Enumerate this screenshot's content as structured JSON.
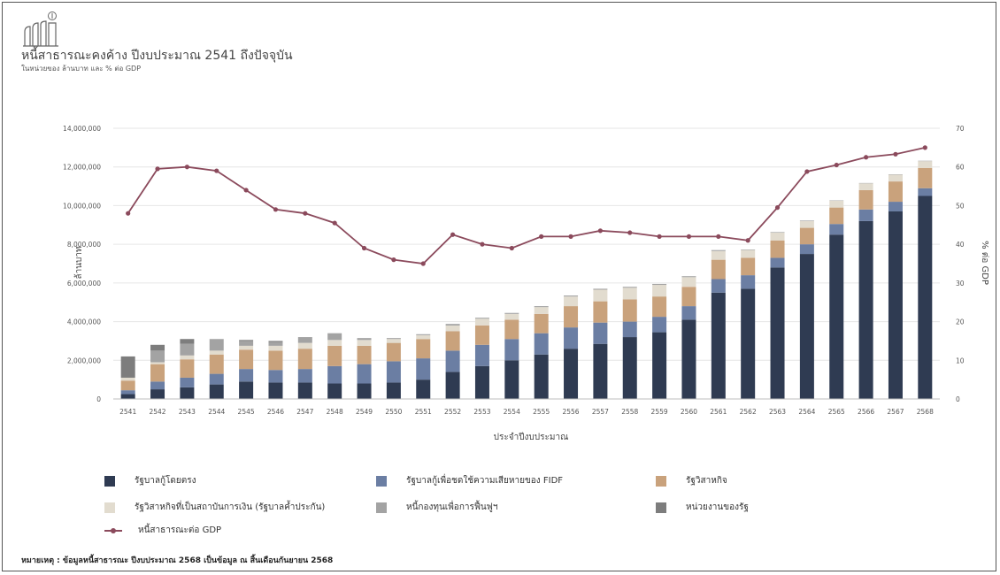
{
  "header": {
    "title": "หนี้สาธารณะคงค้าง ปีงบประมาณ 2541 ถึงปัจจุบัน",
    "subtitle": "ในหน่วยของ ล้านบาท และ % ต่อ GDP"
  },
  "note": "หมายเหตุ : ข้อมูลหนี้สาธารณะ ปีงบประมาณ 2568 เป็นข้อมูล ณ สิ้นเดือนกันยายน 2568",
  "chart_data": {
    "type": "bar",
    "stacked": true,
    "xlabel": "ประจำปีงบประมาณ",
    "ylabel": "ล้านบาท",
    "y2label": "% ต่อ GDP",
    "ylim": [
      0,
      14000000
    ],
    "y2lim": [
      0,
      70
    ],
    "yticks": [
      "0",
      "2,000,000",
      "4,000,000",
      "6,000,000",
      "8,000,000",
      "10,000,000",
      "12,000,000",
      "14,000,000"
    ],
    "y2ticks": [
      "0",
      "10",
      "20",
      "30",
      "40",
      "50",
      "60",
      "70"
    ],
    "grid": true,
    "legend_position": "bottom",
    "categories": [
      "2541",
      "2542",
      "2543",
      "2544",
      "2545",
      "2546",
      "2547",
      "2548",
      "2549",
      "2550",
      "2551",
      "2552",
      "2553",
      "2554",
      "2555",
      "2556",
      "2557",
      "2558",
      "2559",
      "2560",
      "2561",
      "2562",
      "2563",
      "2564",
      "2565",
      "2566",
      "2567",
      "2568"
    ],
    "series": [
      {
        "name": "รัฐบาลกู้โดยตรง",
        "color": "#2f3b52",
        "values": [
          250000,
          500000,
          600000,
          750000,
          900000,
          850000,
          850000,
          800000,
          800000,
          850000,
          1000000,
          1400000,
          1700000,
          2000000,
          2300000,
          2600000,
          2850000,
          3200000,
          3450000,
          4100000,
          5500000,
          5700000,
          6800000,
          7500000,
          8500000,
          9200000,
          9700000,
          10500000
        ]
      },
      {
        "name": "รัฐบาลกู้เพื่อชดใช้ความเสียหายของ FIDF",
        "color": "#6b7ea3",
        "values": [
          200000,
          400000,
          500000,
          550000,
          650000,
          650000,
          700000,
          900000,
          1000000,
          1100000,
          1100000,
          1100000,
          1100000,
          1100000,
          1100000,
          1100000,
          1100000,
          800000,
          800000,
          700000,
          700000,
          700000,
          500000,
          500000,
          550000,
          600000,
          500000,
          400000
        ]
      },
      {
        "name": "รัฐวิสาหกิจ",
        "color": "#c9a27c",
        "values": [
          500000,
          900000,
          950000,
          1000000,
          1000000,
          1000000,
          1050000,
          1050000,
          950000,
          950000,
          1000000,
          1000000,
          1000000,
          1000000,
          1000000,
          1100000,
          1100000,
          1150000,
          1050000,
          1000000,
          1000000,
          900000,
          900000,
          850000,
          850000,
          1000000,
          1050000,
          1050000
        ]
      },
      {
        "name": "รัฐวิสาหกิจที่เป็นสถาบันการเงิน (รัฐบาลค้ำประกัน)",
        "color": "#e2dccf",
        "values": [
          150000,
          100000,
          200000,
          200000,
          200000,
          250000,
          300000,
          300000,
          300000,
          200000,
          200000,
          300000,
          350000,
          300000,
          350000,
          500000,
          600000,
          600000,
          600000,
          500000,
          450000,
          400000,
          400000,
          350000,
          350000,
          350000,
          350000,
          350000
        ]
      },
      {
        "name": "หนี้กองทุนเพื่อการฟื้นฟูฯ",
        "color": "#a3a3a3",
        "values": [
          0,
          600000,
          600000,
          600000,
          250000,
          200000,
          300000,
          350000,
          100000,
          50000,
          50000,
          80000,
          50000,
          50000,
          50000,
          50000,
          50000,
          50000,
          50000,
          50000,
          50000,
          30000,
          30000,
          30000,
          20000,
          20000,
          20000,
          20000
        ]
      },
      {
        "name": "หน่วยงานของรัฐ",
        "color": "#7d7d7d",
        "values": [
          1100000,
          300000,
          250000,
          0,
          50000,
          50000,
          0,
          0,
          0,
          0,
          0,
          0,
          0,
          0,
          0,
          0,
          0,
          0,
          0,
          0,
          0,
          0,
          0,
          0,
          0,
          0,
          0,
          0
        ]
      }
    ],
    "line": {
      "name": "หนี้สาธารณะต่อ GDP",
      "color": "#8b4a5c",
      "axis": "right",
      "values": [
        48,
        59.5,
        60,
        59,
        54,
        49,
        48,
        45.5,
        39,
        36,
        35,
        42.5,
        40,
        39,
        42,
        42,
        43.5,
        43,
        42,
        42,
        42,
        41,
        49.5,
        58.8,
        60.5,
        62.5,
        63.3,
        65
      ]
    }
  }
}
